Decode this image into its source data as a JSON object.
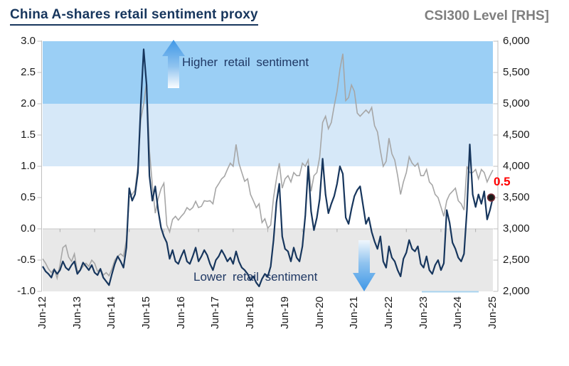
{
  "header": {
    "title": "China A-shares retail sentiment proxy",
    "right_title": "CSI300 Level [RHS]"
  },
  "annotations": {
    "higher": "Higher retail sentiment",
    "lower": "Lower retail sentiment",
    "last_value_label": "0.5"
  },
  "colors": {
    "title_navy": "#17365d",
    "right_title_gray": "#7f7f7f",
    "sentiment_line": "#17365d",
    "csi_line": "#a6a6a6",
    "band_high_blue": "#9bcff5",
    "band_mid_blue": "#d6e8f8",
    "band_low_gray": "#e8e8e8",
    "axis_gray": "#bfbfbf",
    "tick_label": "#1a1a1a",
    "last_label_red": "#ff0000",
    "arrow_blue": "#3f97e6"
  },
  "chart_data": {
    "type": "line",
    "title": "China A-shares retail sentiment proxy",
    "right_axis_title": "CSI300 Level [RHS]",
    "x_monthly_from": "Jun-2012",
    "x_monthly_to": "Jun-2025",
    "x_tick_labels": [
      "Jun-12",
      "Jun-13",
      "Jun-14",
      "Jun-15",
      "Jun-16",
      "Jun-17",
      "Jun-18",
      "Jun-19",
      "Jun-20",
      "Jun-21",
      "Jun-22",
      "Jun-23",
      "Jun-24",
      "Jun-25"
    ],
    "left_axis": {
      "min": -1.0,
      "max": 3.0,
      "tick_labels": [
        "3.0",
        "2.5",
        "2.0",
        "1.5",
        "1.0",
        "0.5",
        "0.0",
        "-0.5",
        "-1.0"
      ]
    },
    "right_axis": {
      "min": 2000,
      "max": 6000,
      "tick_labels": [
        "6,000",
        "5,500",
        "5,000",
        "4,500",
        "4,000",
        "3,500",
        "3,000",
        "2,500",
        "2,000"
      ]
    },
    "bands": [
      {
        "label": "higher sentiment band",
        "from": 2.0,
        "to": 3.0
      },
      {
        "label": "elevated sentiment band",
        "from": 1.0,
        "to": 2.0
      },
      {
        "label": "lower sentiment band",
        "from": -1.0,
        "to": 0.0
      }
    ],
    "series": [
      {
        "name": "Retail sentiment proxy",
        "axis": "left",
        "values": [
          -0.6,
          -0.68,
          -0.72,
          -0.78,
          -0.65,
          -0.72,
          -0.66,
          -0.52,
          -0.62,
          -0.66,
          -0.58,
          -0.52,
          -0.72,
          -0.66,
          -0.54,
          -0.6,
          -0.66,
          -0.58,
          -0.7,
          -0.74,
          -0.64,
          -0.78,
          -0.84,
          -0.9,
          -0.72,
          -0.56,
          -0.44,
          -0.52,
          -0.62,
          -0.3,
          0.65,
          0.45,
          0.55,
          0.9,
          2.0,
          2.87,
          2.3,
          0.85,
          0.45,
          0.68,
          0.3,
          0.02,
          -0.12,
          -0.22,
          -0.48,
          -0.34,
          -0.52,
          -0.56,
          -0.44,
          -0.34,
          -0.52,
          -0.56,
          -0.44,
          -0.3,
          -0.52,
          -0.44,
          -0.34,
          -0.42,
          -0.56,
          -0.66,
          -0.5,
          -0.44,
          -0.34,
          -0.42,
          -0.52,
          -0.46,
          -0.56,
          -0.36,
          -0.52,
          -0.62,
          -0.66,
          -0.72,
          -0.82,
          -0.76,
          -0.86,
          -0.92,
          -0.8,
          -0.72,
          -0.76,
          -0.6,
          -0.18,
          0.42,
          0.72,
          -0.12,
          -0.32,
          -0.36,
          -0.52,
          -0.3,
          -0.46,
          -0.52,
          -0.28,
          0.22,
          1.0,
          0.28,
          -0.02,
          0.18,
          0.48,
          1.12,
          0.55,
          0.25,
          0.4,
          0.52,
          0.72,
          1.0,
          0.88,
          0.18,
          0.08,
          0.32,
          0.52,
          0.62,
          0.68,
          0.38,
          0.08,
          0.18,
          -0.05,
          -0.2,
          -0.32,
          -0.12,
          -0.52,
          -0.62,
          -0.28,
          -0.46,
          -0.52,
          -0.66,
          -0.76,
          -0.48,
          -0.38,
          -0.18,
          -0.32,
          -0.36,
          -0.28,
          -0.56,
          -0.62,
          -0.44,
          -0.66,
          -0.72,
          -0.58,
          -0.5,
          -0.66,
          -0.55,
          0.3,
          0.1,
          -0.22,
          -0.32,
          -0.46,
          -0.52,
          -0.4,
          0.3,
          1.35,
          0.55,
          0.35,
          0.55,
          0.4,
          0.6,
          0.15,
          0.3,
          0.5
        ]
      },
      {
        "name": "CSI300 Level",
        "axis": "right",
        "values": [
          2520,
          2450,
          2360,
          2300,
          2360,
          2210,
          2420,
          2700,
          2740,
          2550,
          2480,
          2600,
          2320,
          2340,
          2400,
          2450,
          2400,
          2500,
          2450,
          2320,
          2360,
          2260,
          2300,
          2250,
          2360,
          2500,
          2560,
          2600,
          2560,
          2820,
          3500,
          3550,
          3620,
          4000,
          4750,
          5000,
          5350,
          4250,
          3700,
          3250,
          3480,
          3640,
          3730,
          3060,
          2950,
          3150,
          3200,
          3140,
          3200,
          3250,
          3340,
          3300,
          3340,
          3440,
          3340,
          3360,
          3450,
          3440,
          3450,
          3400,
          3650,
          3720,
          3800,
          3840,
          3950,
          4050,
          4000,
          4350,
          4050,
          3900,
          3760,
          3800,
          3550,
          3450,
          3340,
          3400,
          3100,
          3160,
          3010,
          3060,
          3500,
          3800,
          4050,
          3650,
          3800,
          3850,
          3750,
          3900,
          3850,
          3850,
          4050,
          4000,
          4100,
          3600,
          3850,
          3900,
          4150,
          4700,
          4800,
          4600,
          4700,
          4960,
          5200,
          5550,
          5800,
          5050,
          5100,
          5300,
          5200,
          4850,
          4800,
          4850,
          4900,
          4850,
          4940,
          4650,
          4550,
          4250,
          4000,
          4080,
          4450,
          4200,
          4100,
          3850,
          3550,
          3750,
          3900,
          4150,
          4050,
          4000,
          4050,
          3850,
          3850,
          3950,
          3750,
          3700,
          3550,
          3500,
          3350,
          3200,
          3450,
          3550,
          3600,
          3650,
          3450,
          3400,
          3300,
          4000,
          3900,
          3900,
          3950,
          3800,
          3950,
          3900,
          3750,
          3850,
          3940
        ]
      }
    ],
    "last_point": {
      "series": "Retail sentiment proxy",
      "x": "Jun-25",
      "value": 0.5,
      "label": "0.5"
    },
    "legend_position": "none",
    "grid": "bands-only"
  }
}
